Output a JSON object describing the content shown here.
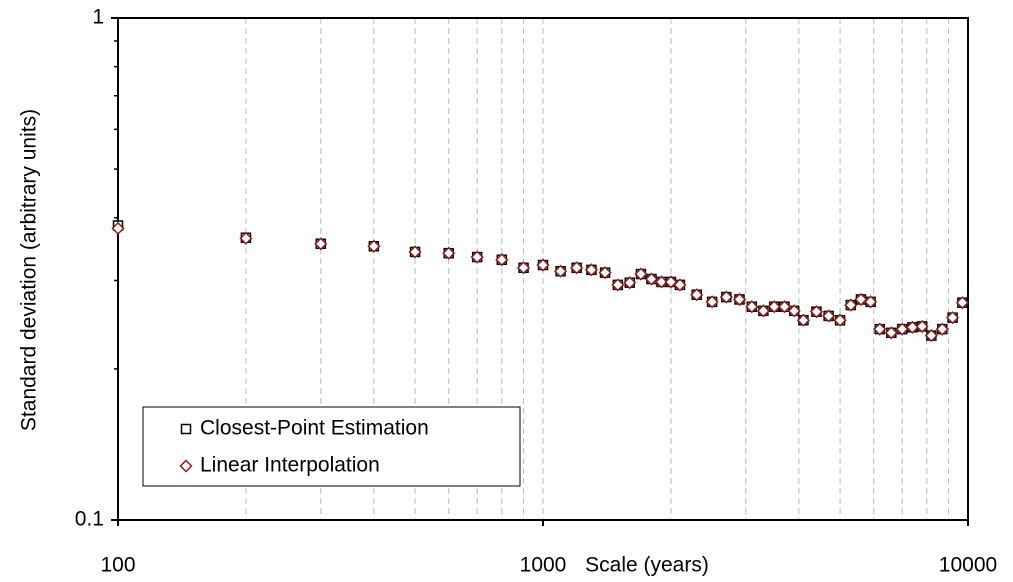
{
  "chart_data": {
    "type": "scatter",
    "x_label": "Scale (years)",
    "y_label": "Standard deviation (arbitrary units)",
    "xscale": "log",
    "yscale": "log",
    "xlim": [
      100,
      10000
    ],
    "ylim": [
      0.1,
      1
    ],
    "xticks": [
      100,
      1000,
      10000
    ],
    "yticks": [
      0.1,
      1
    ],
    "xminorticks": [
      200,
      300,
      400,
      500,
      600,
      700,
      800,
      900,
      2000,
      3000,
      4000,
      5000,
      6000,
      7000,
      8000,
      9000
    ],
    "yminorticks": [
      0.2,
      0.3,
      0.4,
      0.5,
      0.6,
      0.7,
      0.8,
      0.9
    ],
    "grid": true,
    "legend": "lower left",
    "x": [
      100,
      200,
      300,
      400,
      500,
      600,
      700,
      800,
      900,
      1000,
      1100,
      1200,
      1300,
      1400,
      1500,
      1600,
      1700,
      1800,
      1900,
      2000,
      2100,
      2300,
      2500,
      2700,
      2900,
      3100,
      3300,
      3500,
      3700,
      3900,
      4100,
      4400,
      4700,
      5000,
      5300,
      5600,
      5900,
      6200,
      6600,
      7000,
      7400,
      7800,
      8200,
      8700,
      9200,
      9700
    ],
    "series": [
      {
        "name": "Closest-Point Estimation",
        "marker": "square",
        "color": "#000000",
        "values": [
          0.386,
          0.365,
          0.355,
          0.351,
          0.342,
          0.34,
          0.334,
          0.33,
          0.318,
          0.322,
          0.313,
          0.318,
          0.315,
          0.311,
          0.294,
          0.297,
          0.309,
          0.302,
          0.298,
          0.298,
          0.294,
          0.281,
          0.272,
          0.278,
          0.275,
          0.266,
          0.261,
          0.266,
          0.266,
          0.261,
          0.25,
          0.26,
          0.255,
          0.25,
          0.268,
          0.275,
          0.272,
          0.24,
          0.236,
          0.24,
          0.242,
          0.243,
          0.233,
          0.24,
          0.253,
          0.271
        ]
      },
      {
        "name": "Linear Interpolation",
        "marker": "diamond",
        "color": "#8b1a1a",
        "values": [
          0.381,
          0.364,
          0.355,
          0.351,
          0.342,
          0.34,
          0.334,
          0.33,
          0.318,
          0.322,
          0.313,
          0.318,
          0.315,
          0.311,
          0.294,
          0.297,
          0.309,
          0.302,
          0.298,
          0.298,
          0.294,
          0.281,
          0.272,
          0.278,
          0.275,
          0.266,
          0.261,
          0.266,
          0.266,
          0.261,
          0.25,
          0.26,
          0.255,
          0.25,
          0.268,
          0.275,
          0.272,
          0.24,
          0.236,
          0.24,
          0.242,
          0.243,
          0.233,
          0.24,
          0.253,
          0.271
        ]
      }
    ]
  }
}
